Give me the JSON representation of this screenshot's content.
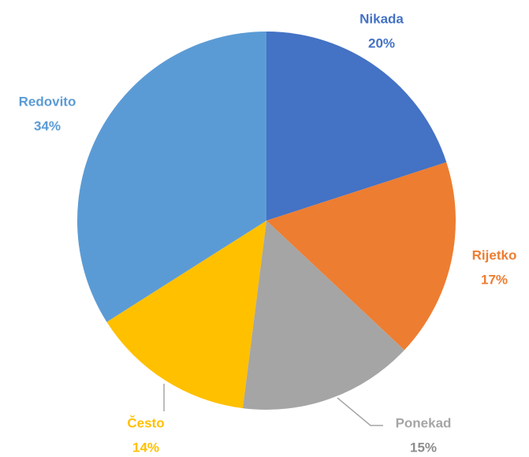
{
  "chart_data": {
    "type": "pie",
    "categories": [
      "Nikada",
      "Rijetko",
      "Ponekad",
      "Često",
      "Redovito"
    ],
    "values": [
      20,
      17,
      15,
      14,
      34
    ],
    "value_labels": [
      "20%",
      "17%",
      "15%",
      "14%",
      "34%"
    ],
    "colors": [
      "#4472c4",
      "#ed7d31",
      "#a5a5a5",
      "#ffc000",
      "#5b9bd5"
    ]
  }
}
